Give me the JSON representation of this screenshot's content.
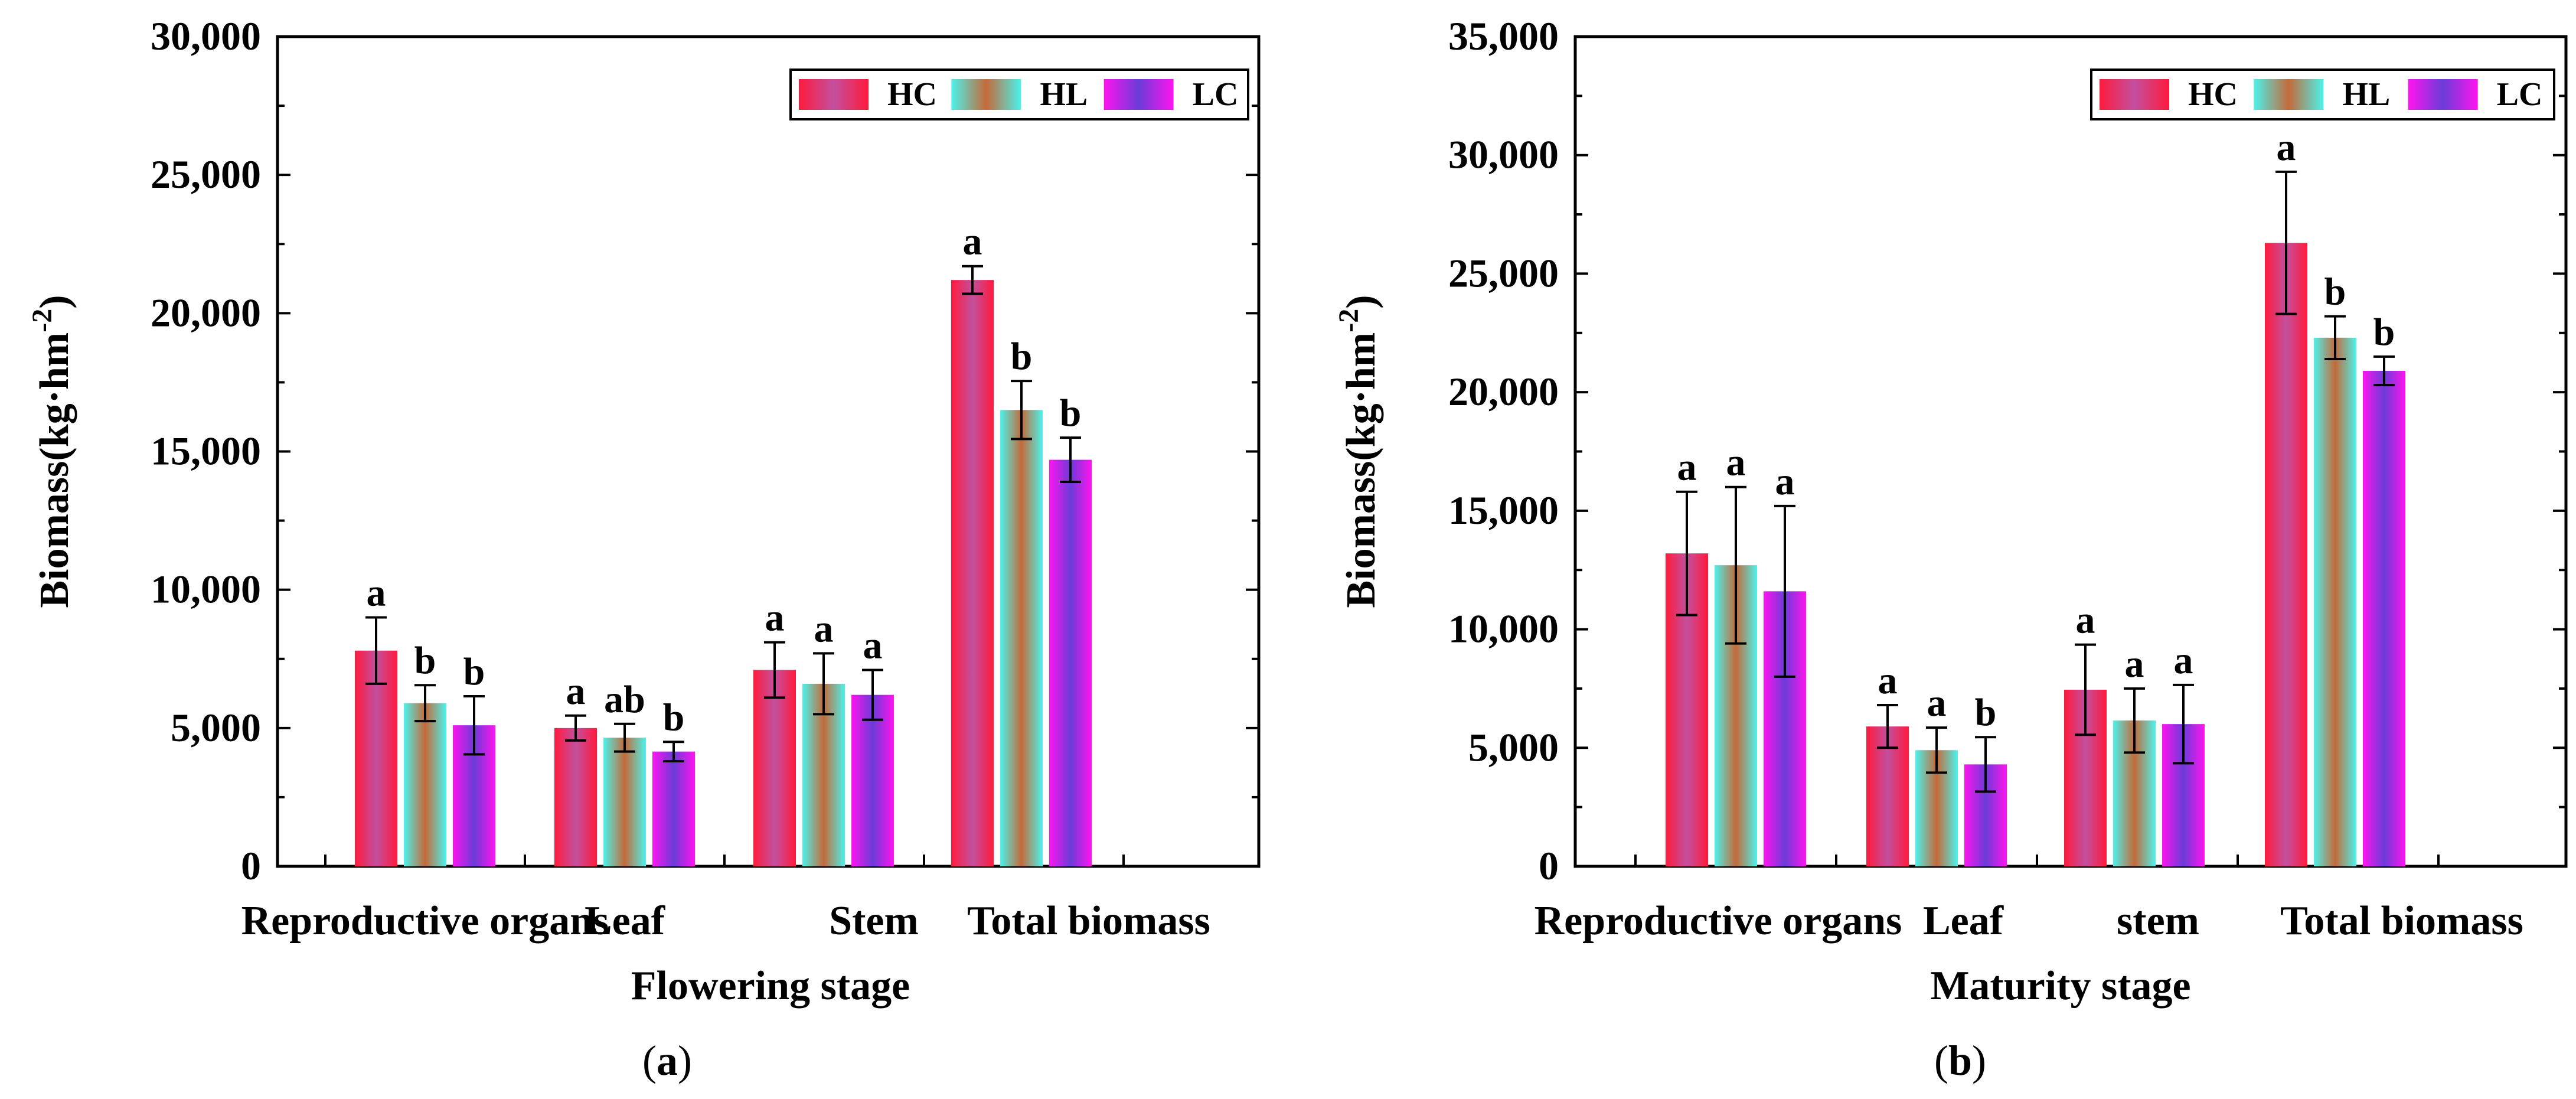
{
  "colors": {
    "HC": [
      "#ff1a3c",
      "#c2509e",
      "#ff1a3c"
    ],
    "HL": [
      "#4cf2ec",
      "#c46a3a",
      "#4cf2ec"
    ],
    "LC": [
      "#ff14f0",
      "#6a3cd8",
      "#ff14f0"
    ]
  },
  "chart_data": [
    {
      "type": "bar",
      "panel": "(a)",
      "panel_letter": "a",
      "xlabel": "Flowering stage",
      "ylabel": "Biomass(kg·hm",
      "ylabel_sup": "-2",
      "ylabel_close": ")",
      "ylim": [
        0,
        30000
      ],
      "yticks": [
        0,
        5000,
        10000,
        15000,
        20000,
        25000,
        30000
      ],
      "ytick_labels": [
        "0",
        "5,000",
        "10,000",
        "15,000",
        "20,000",
        "25,000",
        "30,000"
      ],
      "categories": [
        "Reproductive organs",
        "Leaf",
        "Stem",
        "Total biomass"
      ],
      "legend": [
        "HC",
        "HL",
        "LC"
      ],
      "legend_position": "top-right",
      "series": [
        {
          "name": "HC",
          "values": [
            7800,
            5000,
            7100,
            21200
          ],
          "errors": [
            1200,
            450,
            1000,
            500
          ],
          "letters": [
            "a",
            "a",
            "a",
            "a"
          ]
        },
        {
          "name": "HL",
          "values": [
            5900,
            4650,
            6600,
            16500
          ],
          "errors": [
            650,
            500,
            1100,
            1050
          ],
          "letters": [
            "b",
            "ab",
            "a",
            "b"
          ]
        },
        {
          "name": "LC",
          "values": [
            5100,
            4150,
            6200,
            14700
          ],
          "errors": [
            1050,
            350,
            900,
            800
          ],
          "letters": [
            "b",
            "b",
            "a",
            "b"
          ]
        }
      ]
    },
    {
      "type": "bar",
      "panel": "(b)",
      "panel_letter": "b",
      "xlabel": "Maturity stage",
      "ylabel": "Biomass(kg·hm",
      "ylabel_sup": "-2",
      "ylabel_close": ")",
      "ylim": [
        0,
        35000
      ],
      "yticks": [
        0,
        5000,
        10000,
        15000,
        20000,
        25000,
        30000,
        35000
      ],
      "ytick_labels": [
        "0",
        "5,000",
        "10,000",
        "15,000",
        "20,000",
        "25,000",
        "30,000",
        "35,000"
      ],
      "categories": [
        "Reproductive organs",
        "Leaf",
        "stem",
        "Total biomass"
      ],
      "legend": [
        "HC",
        "HL",
        "LC"
      ],
      "legend_position": "top-right",
      "series": [
        {
          "name": "HC",
          "values": [
            13200,
            5900,
            7450,
            26300
          ],
          "errors": [
            2600,
            900,
            1900,
            3000
          ],
          "letters": [
            "a",
            "a",
            "a",
            "a"
          ]
        },
        {
          "name": "HL",
          "values": [
            12700,
            4900,
            6150,
            22300
          ],
          "errors": [
            3300,
            950,
            1350,
            900
          ],
          "letters": [
            "a",
            "a",
            "a",
            "b"
          ]
        },
        {
          "name": "LC",
          "values": [
            11600,
            4300,
            6000,
            20900
          ],
          "errors": [
            3600,
            1150,
            1650,
            600
          ],
          "letters": [
            "a",
            "b",
            "a",
            "b"
          ]
        }
      ]
    }
  ]
}
